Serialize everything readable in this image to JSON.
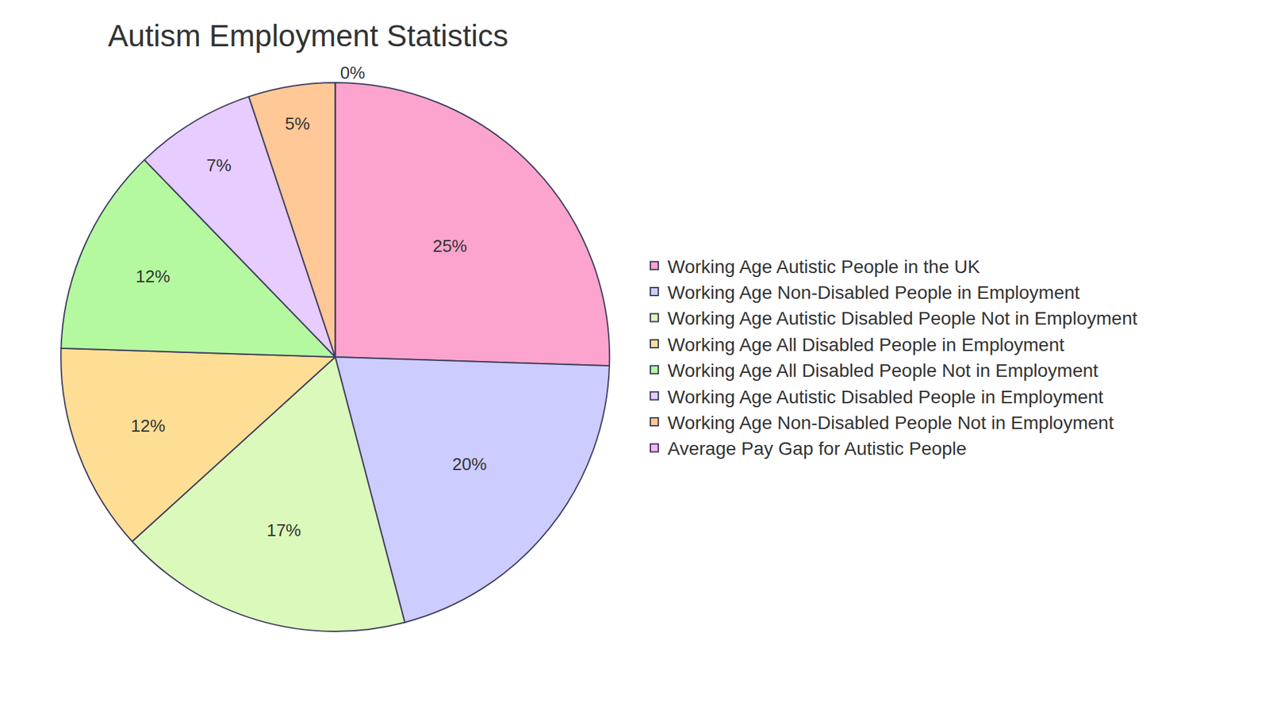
{
  "chart_data": {
    "type": "pie",
    "title": "Autism Employment Statistics",
    "categories": [
      "Working Age Autistic People in the UK",
      "Working Age Non-Disabled People in Employment",
      "Working Age Autistic Disabled People Not in Employment",
      "Working Age All Disabled People in Employment",
      "Working Age All Disabled People Not in Employment",
      "Working Age Autistic Disabled People in Employment",
      "Working Age Non-Disabled People Not in Employment",
      "Average Pay Gap for Autistic People"
    ],
    "values": [
      25,
      20,
      17,
      12,
      12,
      7,
      5,
      0
    ],
    "value_labels": [
      "25%",
      "20%",
      "17%",
      "12%",
      "12%",
      "7%",
      "5%",
      "0%"
    ],
    "colors": [
      "#fda4ce",
      "#ccccff",
      "#dbf9ba",
      "#fede94",
      "#b4f9a0",
      "#e6ccff",
      "#ffc896",
      "#ffb3f5"
    ],
    "data_labels": true,
    "legend": "right"
  }
}
